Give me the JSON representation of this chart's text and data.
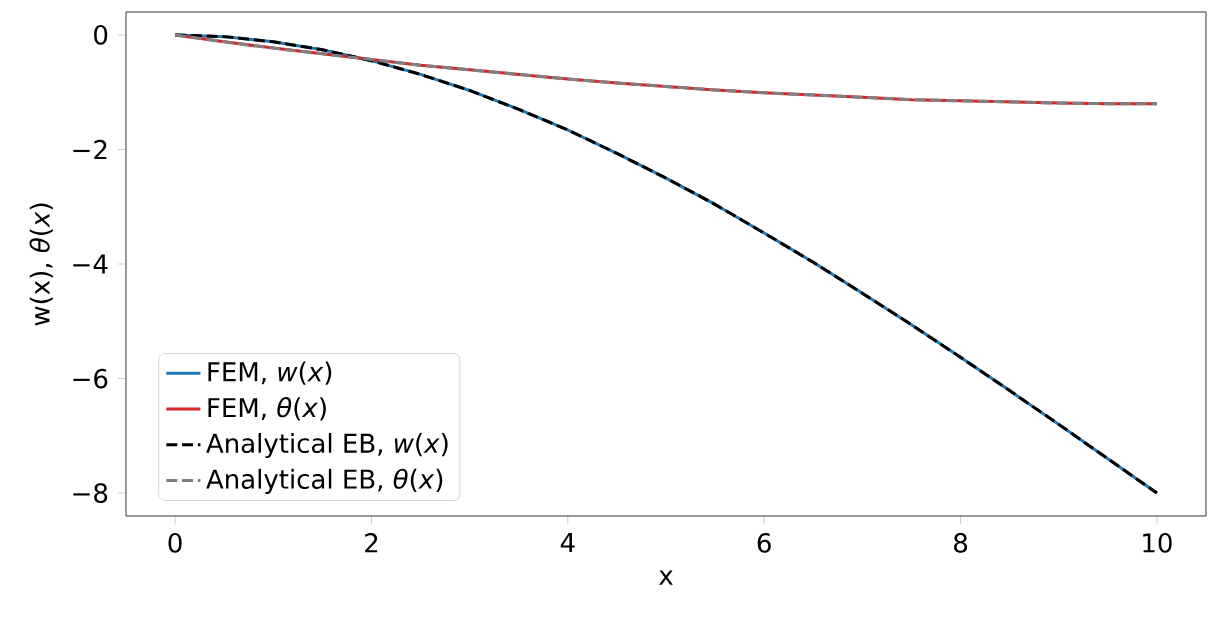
{
  "chart_data": {
    "type": "line",
    "xlabel": "x",
    "ylabel": "w(x), *θ*(*x*)",
    "x": [
      0,
      0.5,
      1,
      1.5,
      2,
      2.5,
      3,
      3.5,
      4,
      4.5,
      5,
      5.5,
      6,
      6.5,
      7,
      7.5,
      8,
      8.5,
      9,
      9.5,
      10
    ],
    "series": [
      {
        "name": "FEM, *w*(*x*)",
        "color": "#1f77b4",
        "line_style": "solid",
        "values": [
          0,
          -0.03,
          -0.12,
          -0.26,
          -0.45,
          -0.69,
          -0.97,
          -1.3,
          -1.66,
          -2.07,
          -2.5,
          -2.96,
          -3.46,
          -3.97,
          -4.51,
          -5.06,
          -5.63,
          -6.21,
          -6.8,
          -7.4,
          -8.0
        ]
      },
      {
        "name": "FEM, *θ*(*x*)",
        "color": "#d62728",
        "line_style": "solid",
        "values": [
          0,
          -0.12,
          -0.23,
          -0.33,
          -0.43,
          -0.53,
          -0.61,
          -0.69,
          -0.77,
          -0.84,
          -0.9,
          -0.96,
          -1.01,
          -1.05,
          -1.09,
          -1.13,
          -1.15,
          -1.17,
          -1.19,
          -1.2,
          -1.2
        ]
      },
      {
        "name": "Analytical EB, *w*(*x*)",
        "color": "#000000",
        "line_style": "dashed",
        "values": [
          0,
          -0.03,
          -0.12,
          -0.26,
          -0.45,
          -0.69,
          -0.97,
          -1.3,
          -1.66,
          -2.07,
          -2.5,
          -2.96,
          -3.46,
          -3.97,
          -4.51,
          -5.06,
          -5.63,
          -6.21,
          -6.8,
          -7.4,
          -8.0
        ]
      },
      {
        "name": "Analytical EB, *θ*(*x*)",
        "color": "#808080",
        "line_style": "dashed",
        "values": [
          0,
          -0.12,
          -0.23,
          -0.33,
          -0.43,
          -0.53,
          -0.61,
          -0.69,
          -0.77,
          -0.84,
          -0.9,
          -0.96,
          -1.01,
          -1.05,
          -1.09,
          -1.13,
          -1.15,
          -1.17,
          -1.19,
          -1.2,
          -1.2
        ]
      }
    ],
    "xlim": [
      -0.5,
      10.5
    ],
    "ylim": [
      -8.4,
      0.4
    ],
    "xticks": [
      0,
      2,
      4,
      6,
      8,
      10
    ],
    "yticks": [
      {
        "value": -8,
        "label": "−8"
      },
      {
        "value": -6,
        "label": "−6"
      },
      {
        "value": -4,
        "label": "−4"
      },
      {
        "value": -2,
        "label": "−2"
      },
      0
    ],
    "legend": "bottom left"
  }
}
